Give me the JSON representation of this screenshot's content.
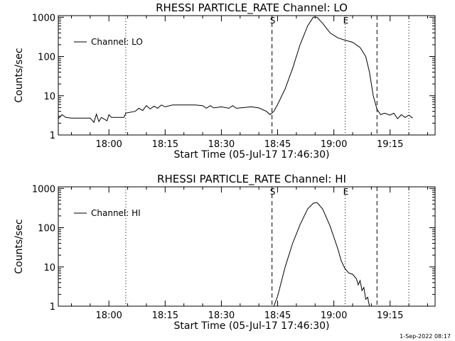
{
  "footer": {
    "date_stamp": "1-Sep-2022 08:17"
  },
  "chart_data": [
    {
      "type": "line",
      "title": "RHESSI PARTICLE_RATE Channel: LO",
      "xlabel": "Start Time (05-Jul-17 17:46:30)",
      "ylabel": "Counts/sec",
      "yscale": "log",
      "ylim": [
        1,
        1100
      ],
      "xlim": [
        "17:46:30",
        "19:27:00"
      ],
      "x_ticks": [
        "18:00",
        "18:15",
        "18:30",
        "18:45",
        "19:00",
        "19:15"
      ],
      "y_ticks": [
        "1",
        "10",
        "100",
        "1000"
      ],
      "legend": {
        "label": "Channel: LO",
        "placement": "top-left"
      },
      "markers": [
        {
          "time": "18:04:30",
          "style": "dotted",
          "label": ""
        },
        {
          "time": "18:43:30",
          "style": "dashed",
          "label": "S"
        },
        {
          "time": "19:03:00",
          "style": "dotted",
          "label": "E"
        },
        {
          "time": "19:11:30",
          "style": "dashed",
          "label": ""
        },
        {
          "time": "19:20:00",
          "style": "dotted",
          "label": ""
        }
      ],
      "series": [
        {
          "name": "Channel: LO",
          "points": [
            [
              "17:46:30",
              2.6
            ],
            [
              "17:47:30",
              3.3
            ],
            [
              "17:48:30",
              2.8
            ],
            [
              "17:50:00",
              2.7
            ],
            [
              "17:52:00",
              2.7
            ],
            [
              "17:55:00",
              2.7
            ],
            [
              "17:56:00",
              2.1
            ],
            [
              "17:56:40",
              3.4
            ],
            [
              "17:57:20",
              2.2
            ],
            [
              "17:58:00",
              2.8
            ],
            [
              "17:59:30",
              2.3
            ],
            [
              "18:00:00",
              3.3
            ],
            [
              "18:00:40",
              2.8
            ],
            [
              "18:02:00",
              2.8
            ],
            [
              "18:04:00",
              2.8
            ],
            [
              "18:04:30",
              3.6
            ],
            [
              "18:07:00",
              4.0
            ],
            [
              "18:08:00",
              4.8
            ],
            [
              "18:09:00",
              4.2
            ],
            [
              "18:10:00",
              5.6
            ],
            [
              "18:11:00",
              4.6
            ],
            [
              "18:12:00",
              5.4
            ],
            [
              "18:13:00",
              4.8
            ],
            [
              "18:14:00",
              5.8
            ],
            [
              "18:15:00",
              5.2
            ],
            [
              "18:17:00",
              5.8
            ],
            [
              "18:20:00",
              5.8
            ],
            [
              "18:23:00",
              5.8
            ],
            [
              "18:25:00",
              5.6
            ],
            [
              "18:26:00",
              4.8
            ],
            [
              "18:27:00",
              5.6
            ],
            [
              "18:28:00",
              4.9
            ],
            [
              "18:30:00",
              5.2
            ],
            [
              "18:32:00",
              4.8
            ],
            [
              "18:33:00",
              5.6
            ],
            [
              "18:34:00",
              4.8
            ],
            [
              "18:36:00",
              5.0
            ],
            [
              "18:38:00",
              5.2
            ],
            [
              "18:40:00",
              4.9
            ],
            [
              "18:42:00",
              4.0
            ],
            [
              "18:43:00",
              3.3
            ],
            [
              "18:44:00",
              4.0
            ],
            [
              "18:45:00",
              6.0
            ],
            [
              "18:47:00",
              15
            ],
            [
              "18:49:00",
              50
            ],
            [
              "18:51:00",
              200
            ],
            [
              "18:53:00",
              600
            ],
            [
              "18:54:30",
              1000
            ],
            [
              "18:55:30",
              1000
            ],
            [
              "18:57:00",
              700
            ],
            [
              "18:59:00",
              400
            ],
            [
              "19:01:00",
              300
            ],
            [
              "19:03:00",
              260
            ],
            [
              "19:05:00",
              230
            ],
            [
              "19:07:00",
              170
            ],
            [
              "19:08:30",
              100
            ],
            [
              "19:09:30",
              40
            ],
            [
              "19:10:30",
              10
            ],
            [
              "19:11:30",
              4.5
            ],
            [
              "19:12:30",
              3.3
            ],
            [
              "19:13:30",
              3.6
            ],
            [
              "19:15:00",
              3.2
            ],
            [
              "19:16:00",
              3.6
            ],
            [
              "19:17:00",
              2.6
            ],
            [
              "19:18:00",
              3.3
            ],
            [
              "19:19:00",
              2.8
            ],
            [
              "19:20:00",
              3.2
            ],
            [
              "19:21:00",
              2.7
            ]
          ]
        }
      ]
    },
    {
      "type": "line",
      "title": "RHESSI PARTICLE_RATE Channel: HI",
      "xlabel": "Start Time (05-Jul-17 17:46:30)",
      "ylabel": "Counts/sec",
      "yscale": "log",
      "ylim": [
        1,
        1100
      ],
      "xlim": [
        "17:46:30",
        "19:27:00"
      ],
      "x_ticks": [
        "18:00",
        "18:15",
        "18:30",
        "18:45",
        "19:00",
        "19:15"
      ],
      "y_ticks": [
        "1",
        "10",
        "100",
        "1000"
      ],
      "legend": {
        "label": "Channel: HI",
        "placement": "top-left"
      },
      "markers": [
        {
          "time": "18:04:30",
          "style": "dotted",
          "label": ""
        },
        {
          "time": "18:43:30",
          "style": "dashed",
          "label": "S"
        },
        {
          "time": "19:03:00",
          "style": "dotted",
          "label": "E"
        },
        {
          "time": "19:11:30",
          "style": "dashed",
          "label": ""
        },
        {
          "time": "19:20:00",
          "style": "dotted",
          "label": ""
        }
      ],
      "series": [
        {
          "name": "Channel: HI",
          "points": [
            [
              "18:44:00",
              1.0
            ],
            [
              "18:45:00",
              1.8
            ],
            [
              "18:47:00",
              10
            ],
            [
              "18:49:00",
              40
            ],
            [
              "18:51:00",
              120
            ],
            [
              "18:53:00",
              300
            ],
            [
              "18:54:30",
              420
            ],
            [
              "18:55:30",
              440
            ],
            [
              "18:57:00",
              300
            ],
            [
              "18:59:00",
              110
            ],
            [
              "19:01:00",
              30
            ],
            [
              "19:02:00",
              14
            ],
            [
              "19:03:00",
              9
            ],
            [
              "19:04:00",
              7
            ],
            [
              "19:05:00",
              6.5
            ],
            [
              "19:06:00",
              5
            ],
            [
              "19:06:30",
              3.5
            ],
            [
              "19:07:00",
              4.5
            ],
            [
              "19:07:30",
              2.5
            ],
            [
              "19:08:00",
              3.0
            ],
            [
              "19:08:30",
              1.5
            ],
            [
              "19:09:00",
              1.7
            ],
            [
              "19:09:30",
              1.0
            ]
          ]
        }
      ]
    }
  ]
}
